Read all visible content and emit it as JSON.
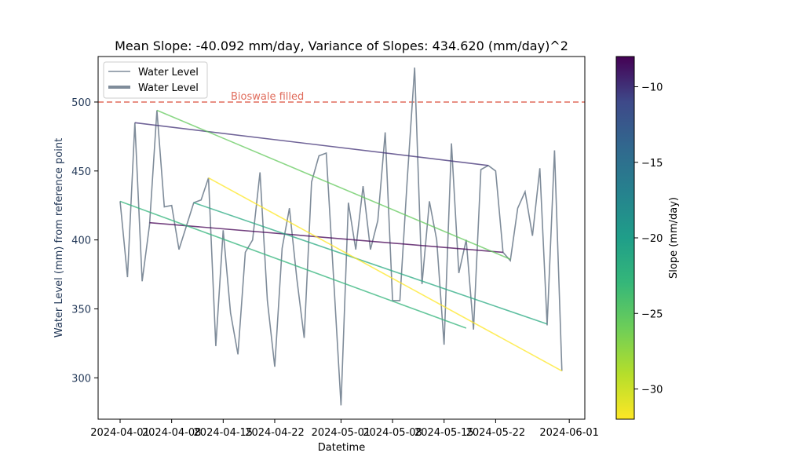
{
  "chart_data": {
    "type": "line",
    "title": "Mean Slope: -40.092 mm/day, Variance of Slopes: 434.620 (mm/day)^2",
    "xlabel": "Datetime",
    "ylabel": "Water Level (mm) from reference point",
    "xlim": [
      "2023-03-29",
      "2024-06-03"
    ],
    "ylim": [
      270,
      533
    ],
    "x_ticks": [
      "2024-04-01",
      "2024-04-08",
      "2024-04-15",
      "2024-04-22",
      "2024-05-01",
      "2024-05-08",
      "2024-05-15",
      "2024-05-22",
      "2024-06-01"
    ],
    "y_ticks": [
      300,
      350,
      400,
      450,
      500
    ],
    "legend": {
      "placement": "top-left",
      "entries": [
        "Water Level",
        "Water Level"
      ]
    },
    "grid": false,
    "colors": {
      "water_level": "#7f8c9a",
      "threshold": "#e06c5c",
      "axis_label": "#1f3555"
    },
    "threshold": {
      "y": 500,
      "label": "Bioswale filled"
    },
    "series": [
      {
        "name": "Water Level",
        "x": [
          "2024-04-01",
          "2024-04-02",
          "2024-04-03",
          "2024-04-04",
          "2024-04-05",
          "2024-04-06",
          "2024-04-07",
          "2024-04-08",
          "2024-04-09",
          "2024-04-10",
          "2024-04-11",
          "2024-04-12",
          "2024-04-13",
          "2024-04-14",
          "2024-04-15",
          "2024-04-16",
          "2024-04-17",
          "2024-04-18",
          "2024-04-19",
          "2024-04-20",
          "2024-04-21",
          "2024-04-22",
          "2024-04-23",
          "2024-04-24",
          "2024-04-25",
          "2024-04-26",
          "2024-04-27",
          "2024-04-28",
          "2024-04-29",
          "2024-04-30",
          "2024-05-01",
          "2024-05-02",
          "2024-05-03",
          "2024-05-04",
          "2024-05-05",
          "2024-05-06",
          "2024-05-07",
          "2024-05-08",
          "2024-05-09",
          "2024-05-10",
          "2024-05-11",
          "2024-05-12",
          "2024-05-13",
          "2024-05-14",
          "2024-05-15",
          "2024-05-16",
          "2024-05-17",
          "2024-05-18",
          "2024-05-19",
          "2024-05-20",
          "2024-05-21",
          "2024-05-22",
          "2024-05-23",
          "2024-05-24",
          "2024-05-25",
          "2024-05-26",
          "2024-05-27",
          "2024-05-28",
          "2024-05-29",
          "2024-05-30",
          "2024-05-31"
        ],
        "y": [
          428,
          373,
          485,
          370,
          411,
          494,
          424,
          425,
          393,
          410,
          427,
          429,
          445,
          323,
          407,
          347,
          317,
          391,
          400,
          449,
          356,
          308,
          394,
          423,
          372,
          329,
          442,
          461,
          463,
          372,
          280,
          427,
          393,
          439,
          393,
          414,
          478,
          356,
          356,
          444,
          525,
          368,
          428,
          400,
          324,
          470,
          376,
          400,
          335,
          451,
          454,
          450,
          391,
          385,
          423,
          435,
          403,
          452,
          338,
          465,
          305
        ]
      }
    ],
    "fit_segments": [
      {
        "x": [
          "2024-04-03",
          "2024-05-21"
        ],
        "y": [
          485,
          454
        ],
        "slope": -0.65
      },
      {
        "x": [
          "2024-04-05",
          "2024-05-23"
        ],
        "y": [
          412.5,
          391
        ],
        "slope": -0.45
      },
      {
        "x": [
          "2024-04-06",
          "2024-05-24"
        ],
        "y": [
          494,
          386
        ],
        "slope": -2.25
      },
      {
        "x": [
          "2024-04-01",
          "2024-05-18"
        ],
        "y": [
          428,
          336
        ],
        "slope": -1.96
      },
      {
        "x": [
          "2024-04-11",
          "2024-05-29"
        ],
        "y": [
          427,
          339
        ],
        "slope": -1.83
      },
      {
        "x": [
          "2024-04-13",
          "2024-05-31"
        ],
        "y": [
          445,
          305
        ],
        "slope": -2.92
      }
    ],
    "colorbar": {
      "label": "Slope (mm/day)",
      "min": -32,
      "max": -8,
      "ticks": [
        -10,
        -15,
        -20,
        -25,
        -30
      ],
      "colormap": "viridis"
    }
  }
}
